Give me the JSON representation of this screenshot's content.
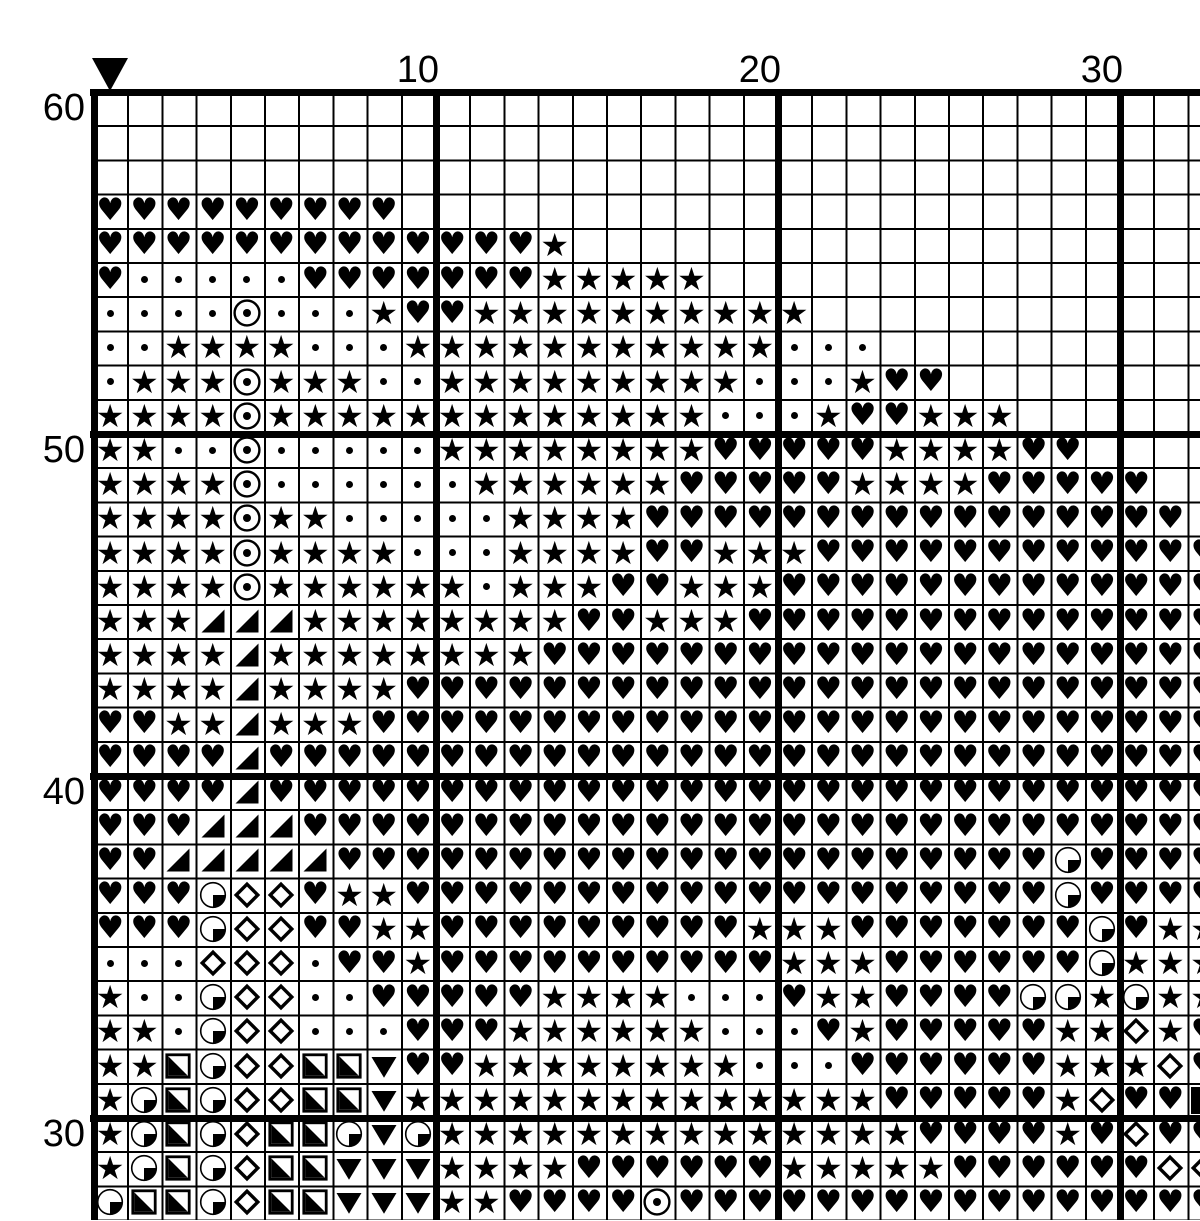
{
  "page": {
    "background": "#ffffff",
    "ink": "#000000"
  },
  "chart": {
    "type": "cross-stitch-pattern-grid",
    "marker_icon": "down-triangle-marker",
    "column_labels": [
      {
        "text": "10",
        "col": 10
      },
      {
        "text": "20",
        "col": 20
      },
      {
        "text": "30",
        "col": 30
      }
    ],
    "row_labels": [
      {
        "text": "60",
        "row": 60
      },
      {
        "text": "50",
        "row": 50
      },
      {
        "text": "40",
        "row": 40
      },
      {
        "text": "30",
        "row": 30
      }
    ],
    "first_row_number": 60,
    "visible_columns": 33,
    "symbols_legend": {
      "H": "black-heart",
      "S": "black-star",
      "d": "small-dot",
      "O": "circled-dot",
      "T": "lower-right-black-triangle",
      "Q": "circle-lower-right-quadrant-black",
      "D": "white-diamond",
      "G": "square-lower-left-half-black",
      "V": "black-down-triangle",
      "F": "black-square",
      ".": "empty"
    },
    "rows": [
      ".................................",
      ".................................",
      ".................................",
      "HHHHHHHHH........................",
      "HHHHHHHHHHHHHS...................",
      "HdddddHHHHHHHSSSSS...............",
      "ddddOdddSHHSSSSSSSSSS............",
      "ddSSSSdddSSSSSSSSSSSddd..........",
      "dSSSOSSSddSSSSSSSSSdddSHH........",
      "SSSSOSSSSSSSSSSSSSdddSHHSSS......",
      "SSddOdddddSSSSSSSSHHHHHSSSSHH....",
      "SSSSOddddddSSSSSSHHHHHSSSSHHHHH..",
      "SSSSOSSdddddSSSSHHHHHHHHHHHHHHHH.",
      "SSSSOSSSSdddSSSSHHSSSHHHHHHHHHHHH",
      "SSSSOSSSSSSdSSSHHSSSHHHHHHHHHHHHH",
      "SSSTTTSSSSSSSSHHSSSHHHHHHHHHHHHHH",
      "SSSSTSSSSSSSSHHHHHHHHHHHHHHHHHHHH",
      "SSSSTSSSSHHHHHHHHHHHHHHHHHHHHHHHH",
      "HHSSTSSSHHHHHHHHHHHHHHHHHHHHHHHHH",
      "HHHHTHHHHHHHHHHHHHHHHHHHHHHHHHHHH",
      "HHHHTHHHHHHHHHHHHHHHHHHHHHHHHHHHH",
      "HHHTTTHHHHHHHHHHHHHHHHHHHHHHHHHHH",
      "HHTTTTTHHHHHHHHHHHHHHHHHHHHHQHHHH",
      "HHHQDDHSSHHHHHHHHHHHHHHHHHHHQHHHH",
      "HHHQDDHHSSHHHHHHHHHSSSHHHHHHHQHSS",
      "dddDDDdHHSHHHHHHHHHHSSSHHHHHHQSSS",
      "SddQDDddHHHHHSSSSdddHSSHHHHQQSQSS",
      "SSdQDDdddHHHSSSSSSdddHSHHHHHSSDSH",
      "SSGQDDGGVHHSSSSSSSSdddHHHHHHSSSDH",
      "SQGQDDGGVSSSSSSSSSSSSSSHHHHHSDHHF",
      "SQGQDGGQVQSSSSSSSSSSSSSSHHHHSHDHH",
      "SQGQDGGVVVSSSSHHHHHHSSSSSHHHHHHDD",
      "QGGQDGGVVVSSHHHHOHHHHHHHHHHHHHHHH"
    ]
  }
}
